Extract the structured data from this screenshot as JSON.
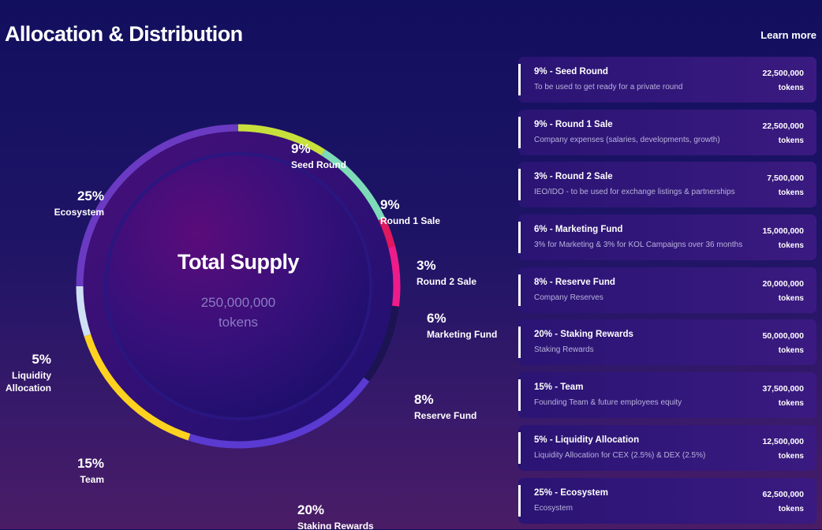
{
  "header": {
    "title": "Allocation & Distribution",
    "learn_more": "Learn more"
  },
  "center": {
    "title": "Total Supply",
    "amount": "250,000,000",
    "unit": "tokens"
  },
  "chart_data": {
    "type": "pie",
    "title": "Total Supply",
    "total": 250000000,
    "unit": "tokens",
    "slices": [
      {
        "label": "Seed Round",
        "pct": 9,
        "pct_label": "9%",
        "value": 22500000,
        "color": "#c8e03c"
      },
      {
        "label": "Round 1 Sale",
        "pct": 9,
        "pct_label": "9%",
        "value": 22500000,
        "color": "#7ddbb8"
      },
      {
        "label": "Round 2 Sale",
        "pct": 3,
        "pct_label": "3%",
        "value": 7500000,
        "color": "#e0185e"
      },
      {
        "label": "Marketing Fund",
        "pct": 6,
        "pct_label": "6%",
        "value": 15000000,
        "color": "#ee1c8a"
      },
      {
        "label": "Reserve Fund",
        "pct": 8,
        "pct_label": "8%",
        "value": 20000000,
        "color": "#1c1452"
      },
      {
        "label": "Staking Rewards",
        "pct": 20,
        "pct_label": "20%",
        "value": 50000000,
        "color": "#5a3ad0"
      },
      {
        "label": "Team",
        "pct": 15,
        "pct_label": "15%",
        "value": 37500000,
        "color": "#ffd21f"
      },
      {
        "label": "Liquidity Allocation",
        "pct": 5,
        "pct_label": "5%",
        "value": 12500000,
        "color": "#cfe0f5"
      },
      {
        "label": "Ecosystem",
        "pct": 25,
        "pct_label": "25%",
        "value": 62500000,
        "color": "#6a3ac2"
      }
    ]
  },
  "cards": [
    {
      "name": "9% - Seed Round",
      "desc": "To be used to get ready for a private round",
      "amount": "22,500,000",
      "unit": "tokens"
    },
    {
      "name": "9% - Round 1 Sale",
      "desc": "Company expenses (salaries, developments, growth)",
      "amount": "22,500,000",
      "unit": "tokens"
    },
    {
      "name": "3% - Round 2 Sale",
      "desc": "IEO/IDO - to be used for exchange listings & partnerships",
      "amount": "7,500,000",
      "unit": "tokens"
    },
    {
      "name": "6% - Marketing Fund",
      "desc": "3% for Marketing & 3% for KOL Campaigns over 36 months",
      "amount": "15,000,000",
      "unit": "tokens"
    },
    {
      "name": "8% - Reserve Fund",
      "desc": "Company Reserves",
      "amount": "20,000,000",
      "unit": "tokens"
    },
    {
      "name": "20% - Staking Rewards",
      "desc": "Staking Rewards",
      "amount": "50,000,000",
      "unit": "tokens"
    },
    {
      "name": "15% - Team",
      "desc": "Founding Team & future employees equity",
      "amount": "37,500,000",
      "unit": "tokens"
    },
    {
      "name": "5% - Liquidity Allocation",
      "desc": "Liquidity Allocation for CEX (2.5%) & DEX (2.5%)",
      "amount": "12,500,000",
      "unit": "tokens"
    },
    {
      "name": "25% - Ecosystem",
      "desc": "Ecosystem",
      "amount": "62,500,000",
      "unit": "tokens"
    }
  ]
}
